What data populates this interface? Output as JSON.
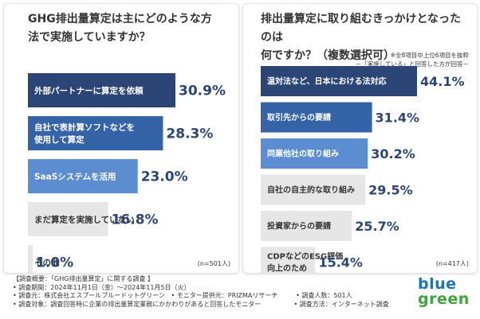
{
  "left": {
    "title_line1": "GHG排出量算定は主にどのような方",
    "title_line2": "法で実施していますか？",
    "n": "(n=501人)"
  },
  "right": {
    "title_line1": "排出量算定に取り組むきっかけとなったのは",
    "title_line2": "何ですか？（複数選択可）",
    "note": "※全8項目中上位6項目を抜粋\n－「実施している」と回答した方が回答－",
    "n": "(n=417人)"
  },
  "chart_data": [
    {
      "type": "bar",
      "orientation": "horizontal",
      "title": "GHG排出量算定は主にどのような方法で実施していますか？",
      "categories": [
        [
          "外部パートナーに算定を依頼"
        ],
        [
          "自社で表計算ソフトなどを",
          "使用して算定"
        ],
        [
          "SaaSシステムを活用"
        ],
        [
          "まだ算定を実施していない"
        ],
        [
          "その他"
        ]
      ],
      "values": [
        30.9,
        28.3,
        23.0,
        16.8,
        1.0
      ],
      "value_labels": [
        "30.9%",
        "28.3%",
        "23.0%",
        "16.8%",
        "1.0%"
      ],
      "colors": [
        "#2b4577",
        "#3563a8",
        "#5b8dd0",
        "#e6e6e6",
        "#e6e6e6"
      ],
      "label_colors": [
        "#ffffff",
        "#ffffff",
        "#ffffff",
        "#333333",
        "#333333"
      ],
      "n": "(n=501人)"
    },
    {
      "type": "bar",
      "orientation": "horizontal",
      "title": "排出量算定に取り組むきっかけとなったのは何ですか？（複数選択可）",
      "categories": [
        [
          "温対法など、日本における法対応"
        ],
        [
          "取引先からの要請"
        ],
        [
          "同業他社の取り組み"
        ],
        [
          "自社の自主的な取り組み"
        ],
        [
          "投資家からの要請"
        ],
        [
          "CDPなどのESG評価",
          "向上のため"
        ]
      ],
      "values": [
        44.1,
        31.4,
        30.2,
        29.5,
        25.7,
        15.4
      ],
      "value_labels": [
        "44.1%",
        "31.4%",
        "30.2%",
        "29.5%",
        "25.7%",
        "15.4%"
      ],
      "colors": [
        "#2b4577",
        "#3563a8",
        "#5b8dd0",
        "#e6e6e6",
        "#e6e6e6",
        "#e6e6e6"
      ],
      "label_colors": [
        "#ffffff",
        "#ffffff",
        "#ffffff",
        "#333333",
        "#333333",
        "#333333"
      ],
      "n": "(n=417人)"
    }
  ],
  "footer": {
    "line1": "【調査概要：「GHG排出量算定」に関する調査 】",
    "line2": "• 調査期間：2024年11月1日（金）〜2024年11月5日（火）",
    "line3a": "• 調査元：株式会社エスプールブルードットグリーン",
    "line3b": "• モニター提供元：PRIZMAリサーチ",
    "line3c": "• 調査人数：501人",
    "line4a": "• 調査対象：調査回答時に企業の排出量算定業務にかかわりがあると回答したモニター",
    "line4b": "• 調査方法：インターネット調査"
  },
  "logo": {
    "line1": "blue",
    "line2": "green"
  },
  "colors": {
    "dark": "#2b4577",
    "mid": "#3563a8",
    "light": "#5b8dd0",
    "gray": "#e6e6e6",
    "value_text": "#2b4577"
  }
}
